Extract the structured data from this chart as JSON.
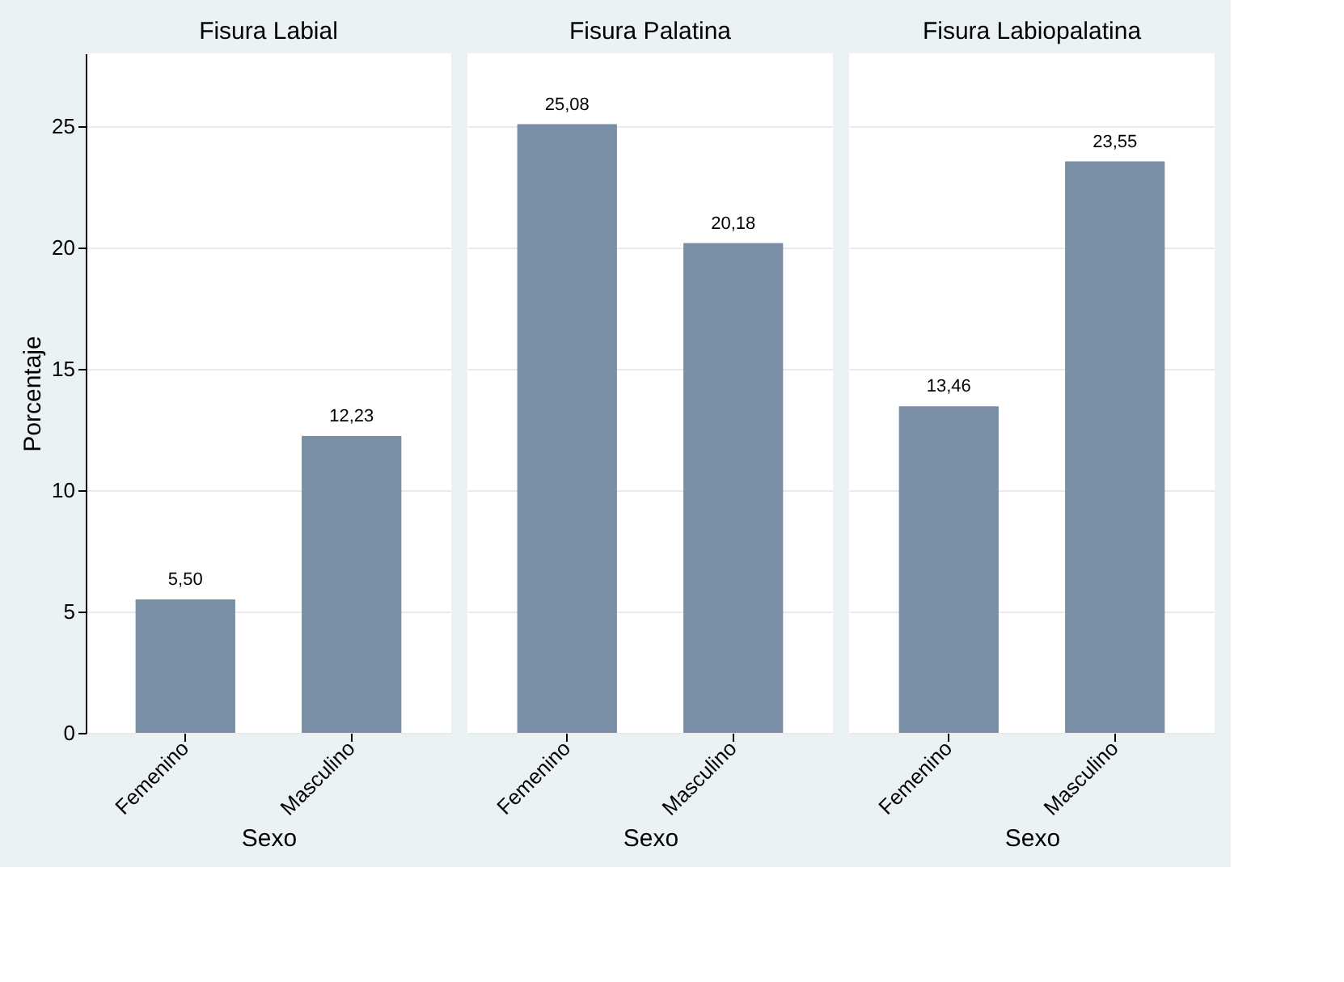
{
  "chart_data": [
    {
      "type": "bar",
      "title": "Fisura Labial",
      "categories": [
        "Femenino",
        "Masculino"
      ],
      "values": [
        5.5,
        12.23
      ],
      "value_labels": [
        "5,50",
        "12,23"
      ],
      "color": "#7a8ea6",
      "xlabel": "Sexo",
      "ylabel": "Porcentaje",
      "ylim": [
        0,
        28
      ],
      "yticks": [
        0,
        5,
        10,
        15,
        20,
        25
      ],
      "grid": "y"
    },
    {
      "type": "bar",
      "title": "Fisura Palatina",
      "categories": [
        "Femenino",
        "Masculino"
      ],
      "values": [
        25.08,
        20.18
      ],
      "value_labels": [
        "25,08",
        "20,18"
      ],
      "color": "#7a8ea6",
      "xlabel": "Sexo",
      "ylim": [
        0,
        28
      ],
      "yticks": [
        0,
        5,
        10,
        15,
        20,
        25
      ],
      "grid": "y",
      "tick_labels": "x"
    },
    {
      "type": "bar",
      "title": "Fisura Labiopalatina",
      "categories": [
        "Femenino",
        "Masculino"
      ],
      "values": [
        13.46,
        23.55
      ],
      "value_labels": [
        "13,46",
        "23,55"
      ],
      "color": "#7a8ea6",
      "xlabel": "Sexo",
      "ylim": [
        0,
        28
      ],
      "yticks": [
        0,
        5,
        10,
        15,
        20,
        25
      ],
      "grid": "y",
      "tick_labels": "x"
    }
  ]
}
